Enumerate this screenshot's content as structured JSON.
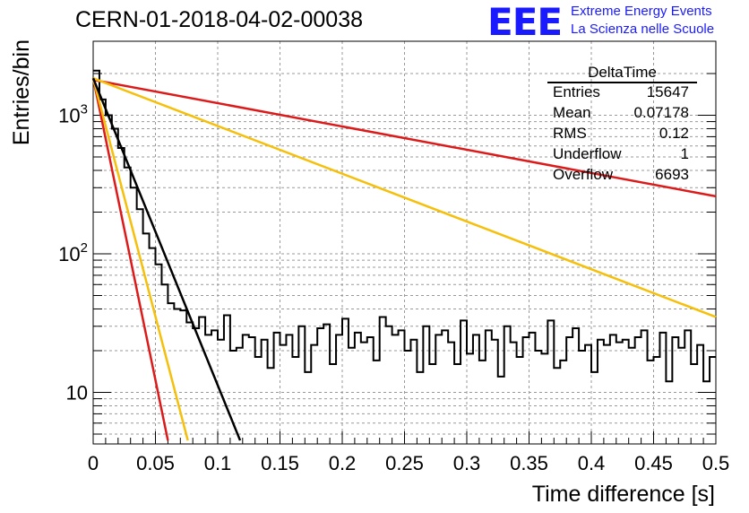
{
  "header": {
    "title": "CERN-01-2018-04-02-00038",
    "logo": "EEE",
    "brand_line1": "Extreme Energy Events",
    "brand_line2": "La Scienza nelle Scuole"
  },
  "stats_box": {
    "title": "DeltaTime",
    "rows": [
      {
        "key": "Entries",
        "value": "15647"
      },
      {
        "key": "Mean",
        "value": "0.07178"
      },
      {
        "key": "RMS",
        "value": "0.12"
      },
      {
        "key": "Underflow",
        "value": "1"
      },
      {
        "key": "Overflow",
        "value": "6693"
      }
    ]
  },
  "chart_data": {
    "type": "histogram",
    "xlabel": "Time difference [s]",
    "ylabel": "Entries/bin",
    "xlim": [
      0,
      0.5
    ],
    "ylim": [
      4.5,
      2500
    ],
    "yscale": "log",
    "grid": true,
    "x_ticks": [
      "0",
      "0.05",
      "0.1",
      "0.15",
      "0.2",
      "0.25",
      "0.3",
      "0.35",
      "0.4",
      "0.45",
      "0.5"
    ],
    "y_tick_labels": [
      "10",
      "10^2",
      "10^3"
    ],
    "bin_width": 0.005,
    "series": [
      {
        "kind": "histogram",
        "values": [
          2100,
          1300,
          1000,
          800,
          580,
          420,
          300,
          210,
          140,
          110,
          84,
          60,
          44,
          40,
          39,
          32,
          29,
          35,
          26,
          28,
          24,
          36,
          20,
          21,
          26,
          25,
          18,
          24,
          15,
          27,
          22,
          26,
          18,
          30,
          14,
          22,
          29,
          31,
          16,
          26,
          34,
          21,
          27,
          23,
          25,
          17,
          35,
          30,
          26,
          28,
          20,
          24,
          14,
          30,
          16,
          26,
          28,
          23,
          16,
          33,
          19,
          26,
          17,
          28,
          24,
          13,
          30,
          23,
          18,
          25,
          27,
          20,
          19,
          33,
          15,
          17,
          25,
          29,
          20,
          22,
          14,
          24,
          22,
          26,
          23,
          24,
          21,
          25,
          28,
          17,
          18,
          27,
          12,
          25,
          21,
          28,
          16,
          22,
          12,
          18
        ],
        "color": "#000000"
      },
      {
        "kind": "line",
        "x": [
          0,
          0.5
        ],
        "y": [
          1800,
          260
        ],
        "color": "#dd1a1a"
      },
      {
        "kind": "line",
        "x": [
          0,
          0.5
        ],
        "y": [
          1850,
          35
        ],
        "color": "#f5bf0a"
      },
      {
        "kind": "line",
        "x": [
          0,
          0.06
        ],
        "y": [
          1850,
          4.5
        ],
        "color": "#dd1a1a"
      },
      {
        "kind": "line",
        "x": [
          0,
          0.076
        ],
        "y": [
          1850,
          4.5
        ],
        "color": "#f5bf0a"
      },
      {
        "kind": "line",
        "x": [
          0,
          0.118
        ],
        "y": [
          1850,
          4.5
        ],
        "color": "#000000"
      }
    ]
  }
}
